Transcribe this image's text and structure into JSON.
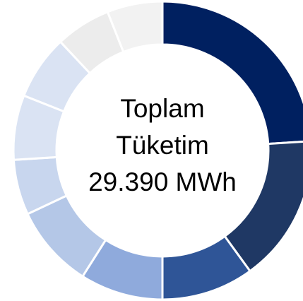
{
  "chart_data": {
    "type": "donut",
    "values": [
      24,
      16,
      10,
      9,
      9,
      6,
      7,
      7,
      6,
      6
    ],
    "colors": [
      "#002060",
      "#1f3864",
      "#2f5597",
      "#8faadc",
      "#b4c7e7",
      "#c8d6ee",
      "#dae3f3",
      "#dae3f3",
      "#ececec",
      "#f2f2f2"
    ],
    "center_text": [
      "Toplam",
      "Tüketim",
      "29.390 MWh"
    ]
  }
}
